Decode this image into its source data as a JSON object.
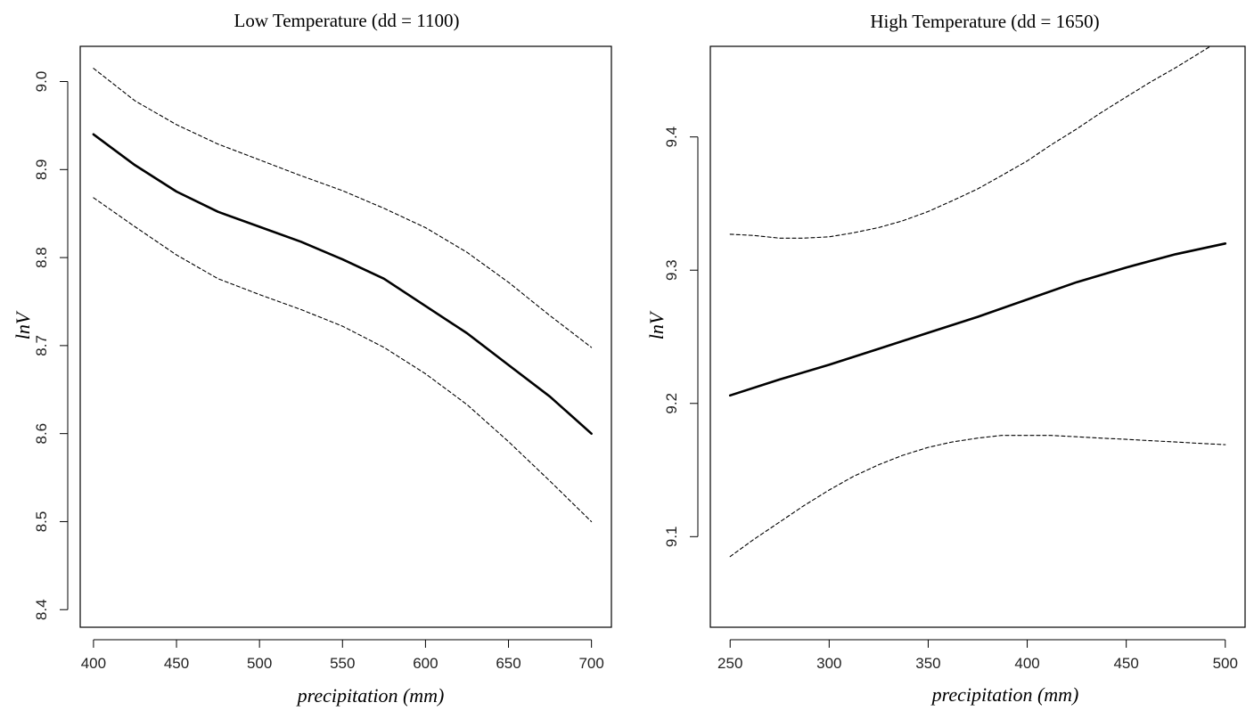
{
  "chart_data": [
    {
      "type": "line",
      "title": "Low Temperature (dd = 1100)",
      "xlabel": "precipitation (mm)",
      "ylabel": "lnV",
      "xlim": [
        392,
        712
      ],
      "ylim": [
        8.38,
        9.04
      ],
      "xticks": [
        400,
        450,
        500,
        550,
        600,
        650,
        700
      ],
      "yticks": [
        8.4,
        8.5,
        8.6,
        8.7,
        8.8,
        8.9,
        9.0
      ],
      "grid": false,
      "series": [
        {
          "style": "solid",
          "x": [
            400,
            425,
            450,
            475,
            500,
            525,
            550,
            575,
            600,
            625,
            650,
            675,
            700
          ],
          "y": [
            8.94,
            8.905,
            8.875,
            8.852,
            8.835,
            8.818,
            8.798,
            8.776,
            8.745,
            8.714,
            8.678,
            8.642,
            8.6
          ]
        },
        {
          "style": "dashed",
          "x": [
            400,
            425,
            450,
            475,
            500,
            525,
            550,
            575,
            600,
            625,
            650,
            675,
            700
          ],
          "y": [
            9.015,
            8.978,
            8.951,
            8.929,
            8.911,
            8.893,
            8.876,
            8.856,
            8.834,
            8.806,
            8.772,
            8.734,
            8.698
          ]
        },
        {
          "style": "dashed",
          "x": [
            400,
            425,
            450,
            475,
            500,
            525,
            550,
            575,
            600,
            625,
            650,
            675,
            700
          ],
          "y": [
            8.868,
            8.835,
            8.803,
            8.776,
            8.758,
            8.741,
            8.722,
            8.698,
            8.668,
            8.633,
            8.591,
            8.546,
            8.5
          ]
        }
      ]
    },
    {
      "type": "line",
      "title": "High Temperature (dd = 1650)",
      "xlabel": "precipitation (mm)",
      "ylabel": "lnV",
      "xlim": [
        240,
        510
      ],
      "ylim": [
        9.032,
        9.468
      ],
      "xticks": [
        250,
        300,
        350,
        400,
        450,
        500
      ],
      "yticks": [
        9.1,
        9.2,
        9.3,
        9.4
      ],
      "grid": false,
      "series": [
        {
          "style": "solid",
          "x": [
            250,
            275,
            300,
            325,
            350,
            375,
            400,
            425,
            450,
            475,
            500
          ],
          "y": [
            9.206,
            9.218,
            9.229,
            9.241,
            9.253,
            9.265,
            9.278,
            9.291,
            9.302,
            9.312,
            9.32
          ]
        },
        {
          "style": "dashed",
          "x": [
            250,
            262,
            275,
            287,
            300,
            312,
            325,
            337,
            350,
            362,
            375,
            387,
            400,
            412,
            425,
            437,
            450,
            462,
            475,
            487,
            500
          ],
          "y": [
            9.327,
            9.326,
            9.324,
            9.324,
            9.325,
            9.328,
            9.332,
            9.337,
            9.344,
            9.352,
            9.361,
            9.371,
            9.382,
            9.394,
            9.406,
            9.418,
            9.43,
            9.441,
            9.452,
            9.463,
            9.475
          ]
        },
        {
          "style": "dashed",
          "x": [
            250,
            262,
            275,
            287,
            300,
            312,
            325,
            337,
            350,
            362,
            375,
            387,
            400,
            412,
            425,
            437,
            450,
            462,
            475,
            487,
            500
          ],
          "y": [
            9.085,
            9.098,
            9.111,
            9.123,
            9.135,
            9.145,
            9.154,
            9.161,
            9.167,
            9.171,
            9.174,
            9.176,
            9.176,
            9.176,
            9.175,
            9.174,
            9.173,
            9.172,
            9.171,
            9.17,
            9.169
          ]
        }
      ]
    }
  ]
}
